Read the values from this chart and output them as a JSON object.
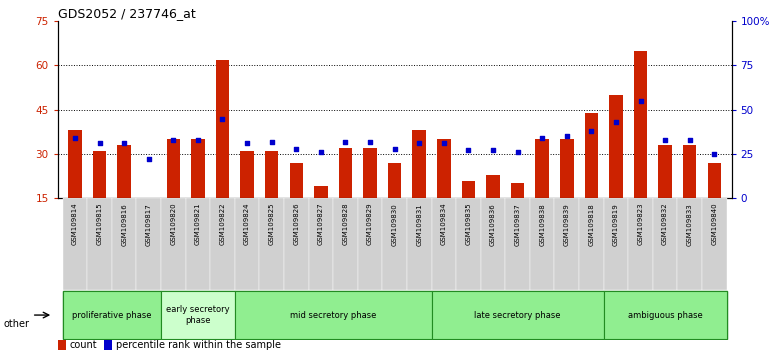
{
  "title": "GDS2052 / 237746_at",
  "samples": [
    "GSM109814",
    "GSM109815",
    "GSM109816",
    "GSM109817",
    "GSM109820",
    "GSM109821",
    "GSM109822",
    "GSM109824",
    "GSM109825",
    "GSM109826",
    "GSM109827",
    "GSM109828",
    "GSM109829",
    "GSM109830",
    "GSM109831",
    "GSM109834",
    "GSM109835",
    "GSM109836",
    "GSM109837",
    "GSM109838",
    "GSM109839",
    "GSM109818",
    "GSM109819",
    "GSM109823",
    "GSM109832",
    "GSM109833",
    "GSM109840"
  ],
  "count_values": [
    38,
    31,
    33,
    15,
    35,
    35,
    62,
    31,
    31,
    27,
    19,
    32,
    32,
    27,
    38,
    35,
    21,
    23,
    20,
    35,
    35,
    44,
    50,
    65,
    33,
    33,
    27
  ],
  "percentile_values": [
    34,
    31,
    31,
    22,
    33,
    33,
    45,
    31,
    32,
    28,
    26,
    32,
    32,
    28,
    31,
    31,
    27,
    27,
    26,
    34,
    35,
    38,
    43,
    55,
    33,
    33,
    25
  ],
  "phases": [
    {
      "name": "proliferative phase",
      "start": 0,
      "end": 4,
      "color": "#90ee90",
      "light": false
    },
    {
      "name": "early secretory\nphase",
      "start": 4,
      "end": 7,
      "color": "#ccffcc",
      "light": true
    },
    {
      "name": "mid secretory phase",
      "start": 7,
      "end": 15,
      "color": "#90ee90",
      "light": false
    },
    {
      "name": "late secretory phase",
      "start": 15,
      "end": 22,
      "color": "#90ee90",
      "light": false
    },
    {
      "name": "ambiguous phase",
      "start": 22,
      "end": 27,
      "color": "#90ee90",
      "light": false
    }
  ],
  "ylim_left": [
    15,
    75
  ],
  "ylim_right": [
    0,
    100
  ],
  "yticks_left": [
    15,
    30,
    45,
    60,
    75
  ],
  "yticks_right": [
    0,
    25,
    50,
    75,
    100
  ],
  "bar_color": "#cc2200",
  "percentile_color": "#0000cc",
  "axis_color_left": "#cc2200",
  "axis_color_right": "#0000cc",
  "bg_color": "#ffffff",
  "xlabel_bg": "#d0d0d0"
}
